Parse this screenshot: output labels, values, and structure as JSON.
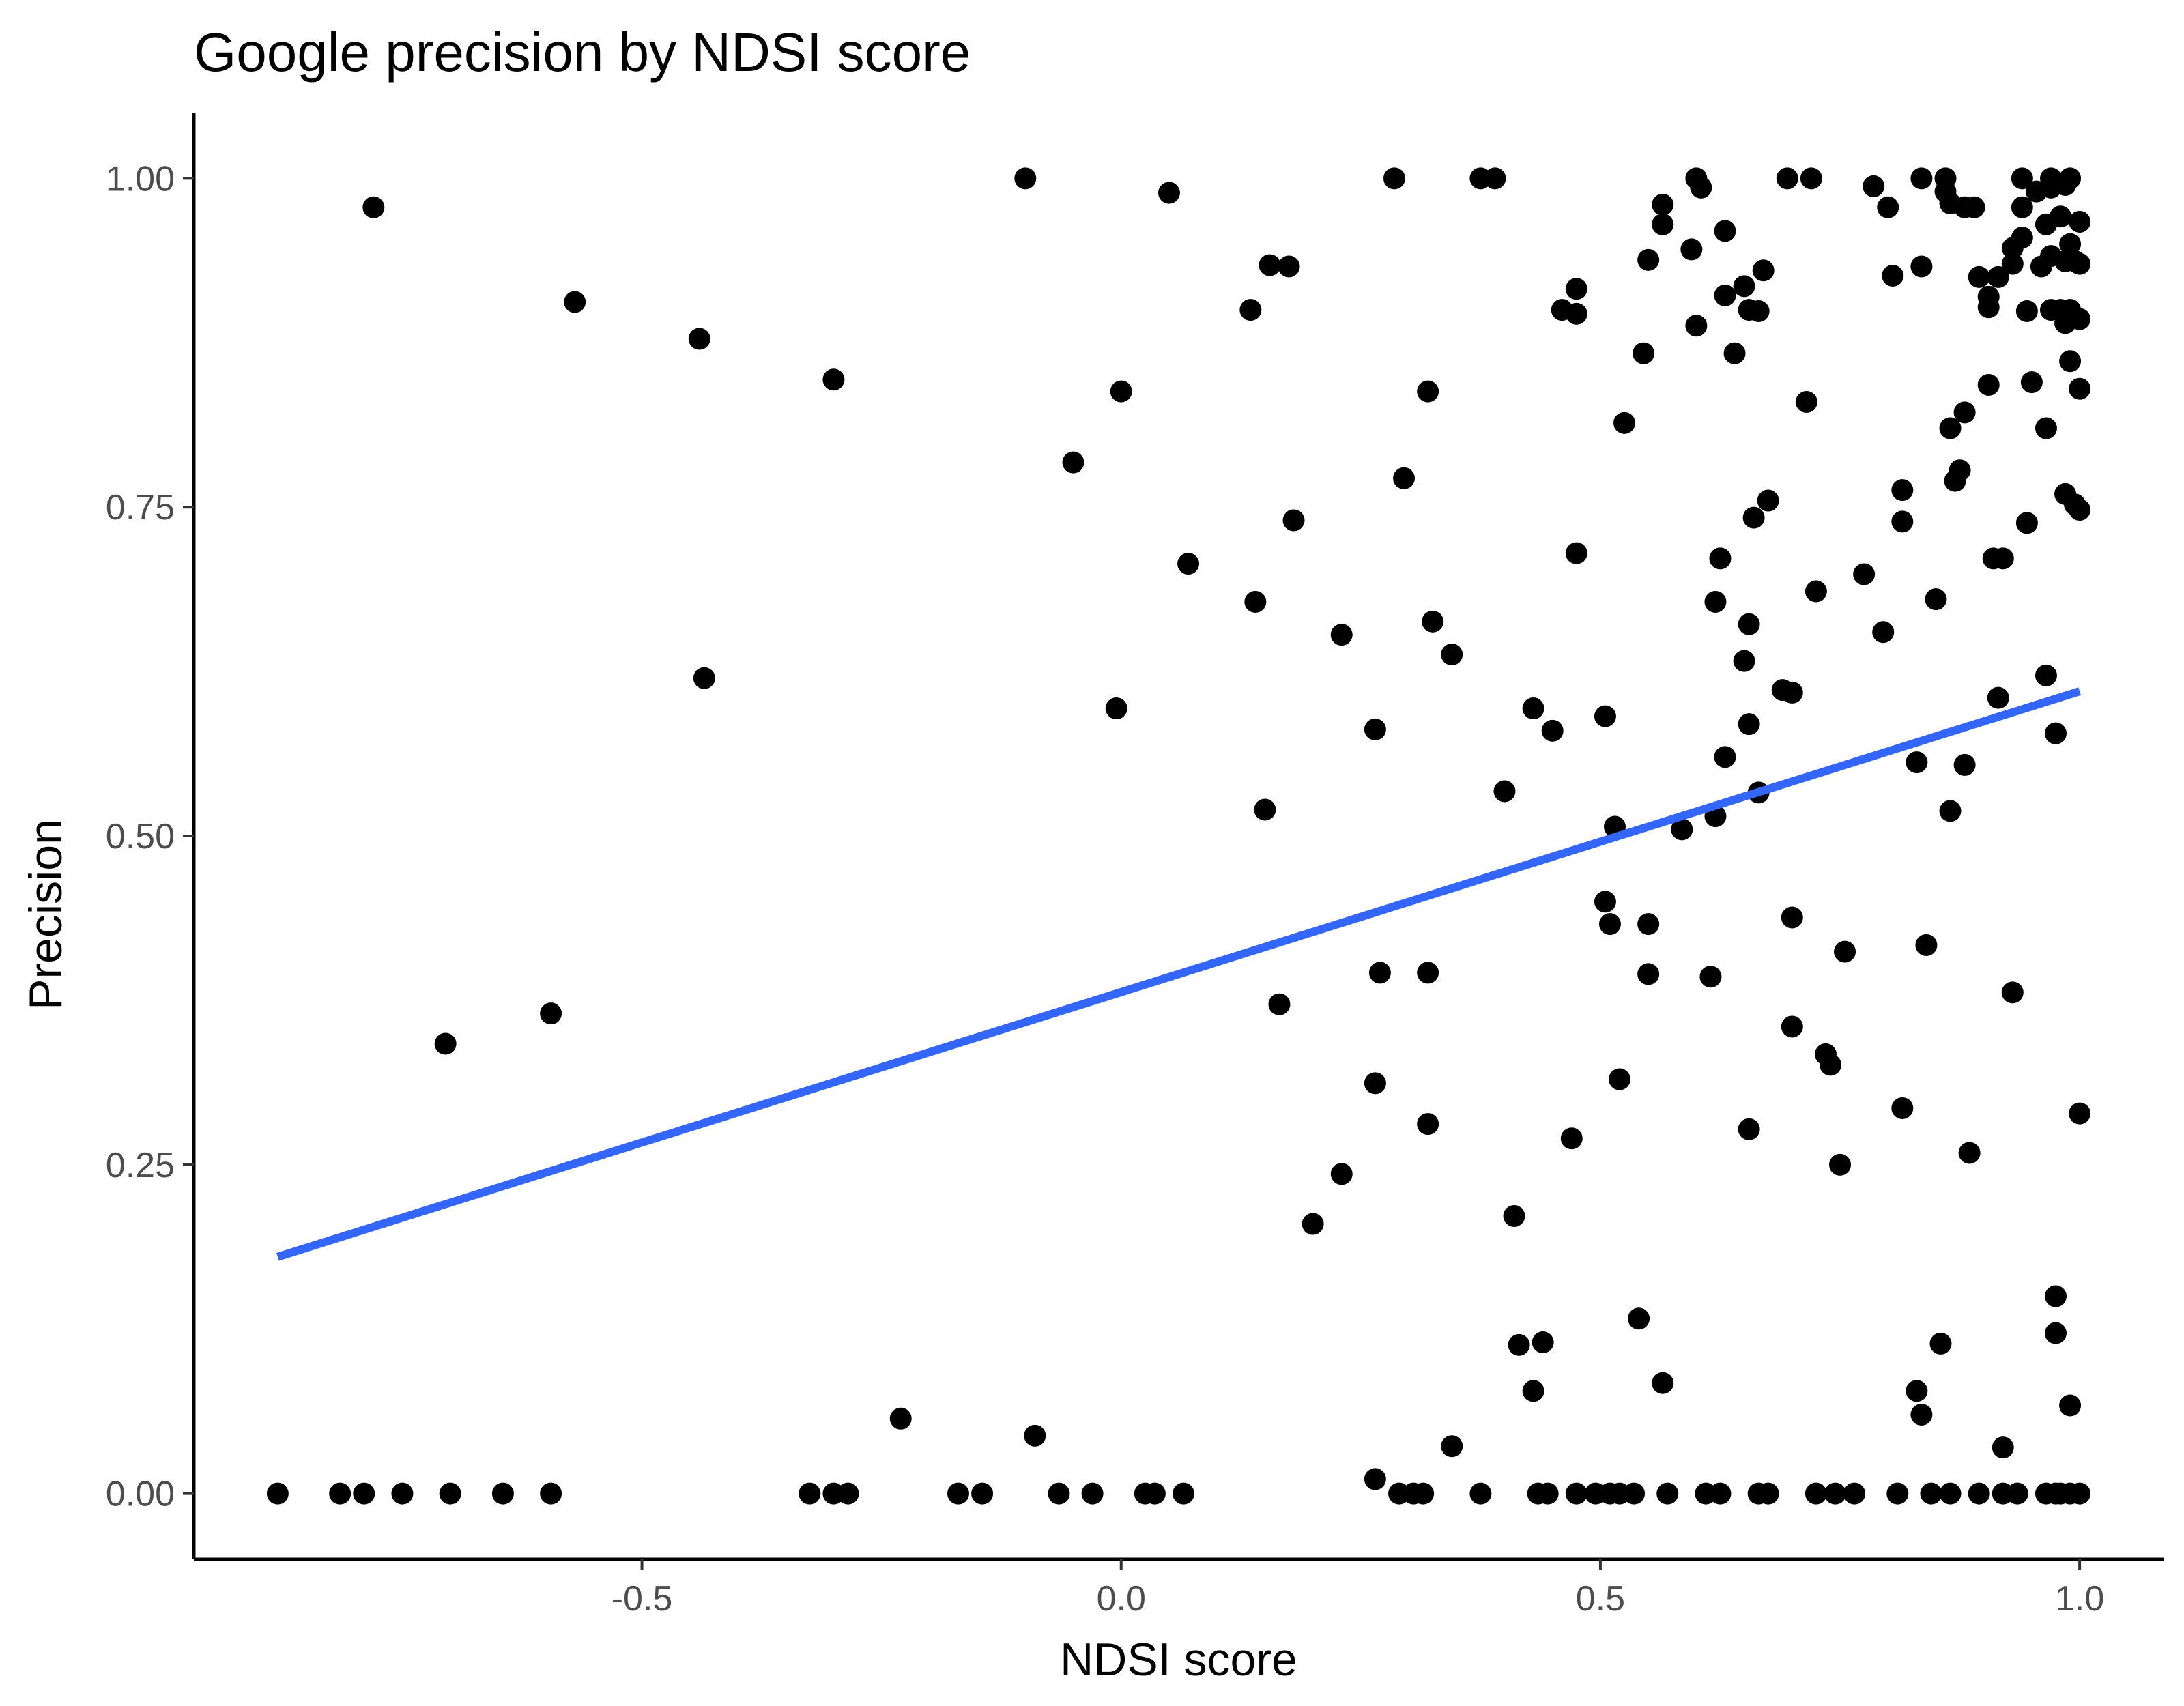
{
  "chart_data": {
    "type": "scatter",
    "title": "Google precision by NDSI score",
    "xlabel": "NDSI score",
    "ylabel": "Precision",
    "xlim": [
      -0.9675,
      1.0875
    ],
    "ylim": [
      -0.05,
      1.05
    ],
    "x_ticks": [
      -0.5,
      0.0,
      0.5,
      1.0
    ],
    "x_tick_labels": [
      "-0.5",
      "0.0",
      "0.5",
      "1.0"
    ],
    "y_ticks": [
      0.0,
      0.25,
      0.5,
      0.75,
      1.0
    ],
    "y_tick_labels": [
      "0.00",
      "0.25",
      "0.50",
      "0.75",
      "1.00"
    ],
    "grid": false,
    "legend": "none",
    "point_color": "#000000",
    "trend_color": "#3366ff",
    "trend_line": {
      "x": [
        -0.88,
        1.0
      ],
      "y": [
        0.18,
        0.61
      ]
    },
    "points": [
      {
        "x": -0.88,
        "y": 0.0
      },
      {
        "x": -0.815,
        "y": 0.0
      },
      {
        "x": -0.79,
        "y": 0.0
      },
      {
        "x": -0.75,
        "y": 0.0
      },
      {
        "x": -0.7,
        "y": 0.0
      },
      {
        "x": -0.645,
        "y": 0.0
      },
      {
        "x": -0.595,
        "y": 0.0
      },
      {
        "x": -0.325,
        "y": 0.0
      },
      {
        "x": -0.3,
        "y": 0.0
      },
      {
        "x": -0.285,
        "y": 0.0
      },
      {
        "x": -0.17,
        "y": 0.0
      },
      {
        "x": -0.145,
        "y": 0.0
      },
      {
        "x": -0.065,
        "y": 0.0
      },
      {
        "x": -0.03,
        "y": 0.0
      },
      {
        "x": 0.025,
        "y": 0.0
      },
      {
        "x": 0.035,
        "y": 0.0
      },
      {
        "x": 0.065,
        "y": 0.0
      },
      {
        "x": 0.29,
        "y": 0.0
      },
      {
        "x": 0.305,
        "y": 0.0
      },
      {
        "x": 0.315,
        "y": 0.0
      },
      {
        "x": 0.375,
        "y": 0.0
      },
      {
        "x": 0.435,
        "y": 0.0
      },
      {
        "x": 0.445,
        "y": 0.0
      },
      {
        "x": 0.475,
        "y": 0.0
      },
      {
        "x": 0.495,
        "y": 0.0
      },
      {
        "x": 0.51,
        "y": 0.0
      },
      {
        "x": 0.52,
        "y": 0.0
      },
      {
        "x": 0.535,
        "y": 0.0
      },
      {
        "x": 0.57,
        "y": 0.0
      },
      {
        "x": 0.61,
        "y": 0.0
      },
      {
        "x": 0.625,
        "y": 0.0
      },
      {
        "x": 0.665,
        "y": 0.0
      },
      {
        "x": 0.675,
        "y": 0.0
      },
      {
        "x": 0.725,
        "y": 0.0
      },
      {
        "x": 0.745,
        "y": 0.0
      },
      {
        "x": 0.765,
        "y": 0.0
      },
      {
        "x": 0.81,
        "y": 0.0
      },
      {
        "x": 0.845,
        "y": 0.0
      },
      {
        "x": 0.865,
        "y": 0.0
      },
      {
        "x": 0.895,
        "y": 0.0
      },
      {
        "x": 0.92,
        "y": 0.0
      },
      {
        "x": 0.935,
        "y": 0.0
      },
      {
        "x": 0.965,
        "y": 0.0
      },
      {
        "x": 0.975,
        "y": 0.0
      },
      {
        "x": 0.98,
        "y": 0.0
      },
      {
        "x": 0.99,
        "y": 0.0
      },
      {
        "x": 1.0,
        "y": 0.0
      },
      {
        "x": -0.78,
        "y": 0.978
      },
      {
        "x": -0.57,
        "y": 0.906
      },
      {
        "x": -0.44,
        "y": 0.878
      },
      {
        "x": -0.3,
        "y": 0.847
      },
      {
        "x": -0.435,
        "y": 0.62
      },
      {
        "x": -0.705,
        "y": 0.342
      },
      {
        "x": -0.595,
        "y": 0.365
      },
      {
        "x": -0.23,
        "y": 0.057
      },
      {
        "x": -0.09,
        "y": 0.044
      },
      {
        "x": -0.1,
        "y": 1.0
      },
      {
        "x": 0.05,
        "y": 0.989
      },
      {
        "x": -0.05,
        "y": 0.784
      },
      {
        "x": 0.0,
        "y": 0.838
      },
      {
        "x": 0.07,
        "y": 0.707
      },
      {
        "x": -0.005,
        "y": 0.597
      },
      {
        "x": 0.135,
        "y": 0.9
      },
      {
        "x": 0.155,
        "y": 0.934
      },
      {
        "x": 0.175,
        "y": 0.933
      },
      {
        "x": 0.18,
        "y": 0.74
      },
      {
        "x": 0.14,
        "y": 0.678
      },
      {
        "x": 0.15,
        "y": 0.52
      },
      {
        "x": 0.165,
        "y": 0.372
      },
      {
        "x": 0.2,
        "y": 0.205
      },
      {
        "x": 0.23,
        "y": 0.653
      },
      {
        "x": 0.23,
        "y": 0.243
      },
      {
        "x": 0.265,
        "y": 0.581
      },
      {
        "x": 0.27,
        "y": 0.396
      },
      {
        "x": 0.265,
        "y": 0.312
      },
      {
        "x": 0.265,
        "y": 0.011
      },
      {
        "x": 0.285,
        "y": 1.0
      },
      {
        "x": 0.295,
        "y": 0.772
      },
      {
        "x": 0.32,
        "y": 0.838
      },
      {
        "x": 0.325,
        "y": 0.663
      },
      {
        "x": 0.345,
        "y": 0.638
      },
      {
        "x": 0.32,
        "y": 0.396
      },
      {
        "x": 0.32,
        "y": 0.281
      },
      {
        "x": 0.345,
        "y": 0.036
      },
      {
        "x": 0.375,
        "y": 1.0
      },
      {
        "x": 0.39,
        "y": 1.0
      },
      {
        "x": 0.4,
        "y": 0.534
      },
      {
        "x": 0.415,
        "y": 0.113
      },
      {
        "x": 0.41,
        "y": 0.211
      },
      {
        "x": 0.43,
        "y": 0.597
      },
      {
        "x": 0.43,
        "y": 0.078
      },
      {
        "x": 0.44,
        "y": 0.115
      },
      {
        "x": 0.45,
        "y": 0.58
      },
      {
        "x": 0.46,
        "y": 0.9
      },
      {
        "x": 0.475,
        "y": 0.916
      },
      {
        "x": 0.475,
        "y": 0.897
      },
      {
        "x": 0.475,
        "y": 0.715
      },
      {
        "x": 0.47,
        "y": 0.27
      },
      {
        "x": 0.505,
        "y": 0.591
      },
      {
        "x": 0.505,
        "y": 0.45
      },
      {
        "x": 0.51,
        "y": 0.433
      },
      {
        "x": 0.515,
        "y": 0.507
      },
      {
        "x": 0.52,
        "y": 0.315
      },
      {
        "x": 0.525,
        "y": 0.814
      },
      {
        "x": 0.54,
        "y": 0.133
      },
      {
        "x": 0.545,
        "y": 0.867
      },
      {
        "x": 0.55,
        "y": 0.938
      },
      {
        "x": 0.55,
        "y": 0.433
      },
      {
        "x": 0.55,
        "y": 0.395
      },
      {
        "x": 0.565,
        "y": 0.98
      },
      {
        "x": 0.565,
        "y": 0.965
      },
      {
        "x": 0.565,
        "y": 0.084
      },
      {
        "x": 0.585,
        "y": 0.505
      },
      {
        "x": 0.595,
        "y": 0.946
      },
      {
        "x": 0.6,
        "y": 1.0
      },
      {
        "x": 0.6,
        "y": 0.888
      },
      {
        "x": 0.605,
        "y": 0.993
      },
      {
        "x": 0.615,
        "y": 0.393
      },
      {
        "x": 0.62,
        "y": 0.678
      },
      {
        "x": 0.62,
        "y": 0.515
      },
      {
        "x": 0.625,
        "y": 0.711
      },
      {
        "x": 0.63,
        "y": 0.96
      },
      {
        "x": 0.63,
        "y": 0.911
      },
      {
        "x": 0.63,
        "y": 0.56
      },
      {
        "x": 0.64,
        "y": 0.867
      },
      {
        "x": 0.65,
        "y": 0.918
      },
      {
        "x": 0.655,
        "y": 0.9
      },
      {
        "x": 0.65,
        "y": 0.633
      },
      {
        "x": 0.655,
        "y": 0.661
      },
      {
        "x": 0.655,
        "y": 0.585
      },
      {
        "x": 0.655,
        "y": 0.277
      },
      {
        "x": 0.66,
        "y": 0.742
      },
      {
        "x": 0.665,
        "y": 0.899
      },
      {
        "x": 0.67,
        "y": 0.93
      },
      {
        "x": 0.675,
        "y": 0.755
      },
      {
        "x": 0.665,
        "y": 0.533
      },
      {
        "x": 0.69,
        "y": 0.611
      },
      {
        "x": 0.7,
        "y": 0.609
      },
      {
        "x": 0.695,
        "y": 1.0
      },
      {
        "x": 0.72,
        "y": 1.0
      },
      {
        "x": 0.7,
        "y": 0.438
      },
      {
        "x": 0.7,
        "y": 0.355
      },
      {
        "x": 0.715,
        "y": 0.83
      },
      {
        "x": 0.725,
        "y": 0.686
      },
      {
        "x": 0.735,
        "y": 0.334
      },
      {
        "x": 0.74,
        "y": 0.326
      },
      {
        "x": 0.75,
        "y": 0.25
      },
      {
        "x": 0.755,
        "y": 0.412
      },
      {
        "x": 0.775,
        "y": 0.699
      },
      {
        "x": 0.785,
        "y": 0.994
      },
      {
        "x": 0.795,
        "y": 0.655
      },
      {
        "x": 0.8,
        "y": 0.978
      },
      {
        "x": 0.805,
        "y": 0.926
      },
      {
        "x": 0.815,
        "y": 0.763
      },
      {
        "x": 0.815,
        "y": 0.739
      },
      {
        "x": 0.815,
        "y": 0.293
      },
      {
        "x": 0.83,
        "y": 0.556
      },
      {
        "x": 0.83,
        "y": 0.078
      },
      {
        "x": 0.835,
        "y": 0.06
      },
      {
        "x": 0.835,
        "y": 1.0
      },
      {
        "x": 0.835,
        "y": 0.933
      },
      {
        "x": 0.84,
        "y": 0.417
      },
      {
        "x": 0.85,
        "y": 0.68
      },
      {
        "x": 0.855,
        "y": 0.114
      },
      {
        "x": 0.86,
        "y": 1.0
      },
      {
        "x": 0.86,
        "y": 0.99
      },
      {
        "x": 0.865,
        "y": 0.981
      },
      {
        "x": 0.865,
        "y": 0.81
      },
      {
        "x": 0.865,
        "y": 0.519
      },
      {
        "x": 0.87,
        "y": 0.77
      },
      {
        "x": 0.875,
        "y": 0.778
      },
      {
        "x": 0.88,
        "y": 0.978
      },
      {
        "x": 0.88,
        "y": 0.822
      },
      {
        "x": 0.88,
        "y": 0.554
      },
      {
        "x": 0.885,
        "y": 0.259
      },
      {
        "x": 0.89,
        "y": 0.978
      },
      {
        "x": 0.895,
        "y": 0.925
      },
      {
        "x": 0.905,
        "y": 0.91
      },
      {
        "x": 0.905,
        "y": 0.902
      },
      {
        "x": 0.905,
        "y": 0.843
      },
      {
        "x": 0.91,
        "y": 0.711
      },
      {
        "x": 0.915,
        "y": 0.925
      },
      {
        "x": 0.915,
        "y": 0.605
      },
      {
        "x": 0.92,
        "y": 0.711
      },
      {
        "x": 0.92,
        "y": 0.035
      },
      {
        "x": 0.93,
        "y": 0.947
      },
      {
        "x": 0.93,
        "y": 0.935
      },
      {
        "x": 0.93,
        "y": 0.381
      },
      {
        "x": 0.94,
        "y": 1.0
      },
      {
        "x": 0.94,
        "y": 0.978
      },
      {
        "x": 0.94,
        "y": 0.955
      },
      {
        "x": 0.945,
        "y": 0.899
      },
      {
        "x": 0.945,
        "y": 0.738
      },
      {
        "x": 0.95,
        "y": 0.845
      },
      {
        "x": 0.955,
        "y": 0.99
      },
      {
        "x": 0.96,
        "y": 0.933
      },
      {
        "x": 0.965,
        "y": 0.965
      },
      {
        "x": 0.965,
        "y": 0.81
      },
      {
        "x": 0.965,
        "y": 0.622
      },
      {
        "x": 0.97,
        "y": 1.0
      },
      {
        "x": 0.97,
        "y": 0.993
      },
      {
        "x": 0.97,
        "y": 0.941
      },
      {
        "x": 0.97,
        "y": 0.9
      },
      {
        "x": 0.975,
        "y": 0.578
      },
      {
        "x": 0.975,
        "y": 0.15
      },
      {
        "x": 0.975,
        "y": 0.122
      },
      {
        "x": 0.98,
        "y": 0.971
      },
      {
        "x": 0.98,
        "y": 0.9
      },
      {
        "x": 0.985,
        "y": 0.995
      },
      {
        "x": 0.985,
        "y": 0.937
      },
      {
        "x": 0.985,
        "y": 0.89
      },
      {
        "x": 0.985,
        "y": 0.76
      },
      {
        "x": 0.99,
        "y": 1.0
      },
      {
        "x": 0.99,
        "y": 0.95
      },
      {
        "x": 0.99,
        "y": 0.9
      },
      {
        "x": 0.99,
        "y": 0.861
      },
      {
        "x": 0.99,
        "y": 0.067
      },
      {
        "x": 0.995,
        "y": 0.937
      },
      {
        "x": 0.995,
        "y": 0.752
      },
      {
        "x": 1.0,
        "y": 0.967
      },
      {
        "x": 1.0,
        "y": 0.935
      },
      {
        "x": 1.0,
        "y": 0.893
      },
      {
        "x": 1.0,
        "y": 0.84
      },
      {
        "x": 1.0,
        "y": 0.748
      },
      {
        "x": 1.0,
        "y": 0.289
      }
    ]
  }
}
